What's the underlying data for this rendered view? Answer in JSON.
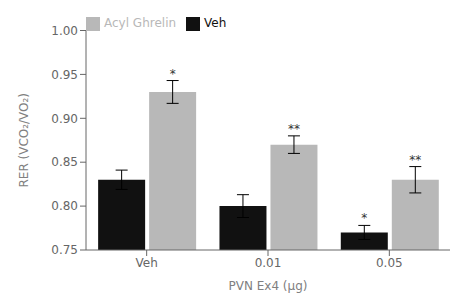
{
  "chart_data": {
    "type": "bar",
    "categories": [
      "Veh",
      "0.01",
      "0.05"
    ],
    "series": [
      {
        "name": "Veh",
        "color": "#111111",
        "values": [
          0.83,
          0.8,
          0.77
        ],
        "errors": [
          0.011,
          0.013,
          0.008
        ],
        "annotations": [
          null,
          null,
          "*"
        ]
      },
      {
        "name": "Acyl Ghrelin",
        "color": "#b8b8b8",
        "values": [
          0.93,
          0.87,
          0.83
        ],
        "errors": [
          0.013,
          0.01,
          0.015
        ],
        "annotations": [
          "*",
          "**",
          "**"
        ]
      }
    ],
    "xlabel": "PVN Ex4 (µg)",
    "ylabel": "RER (VCO₂/VO₂)",
    "ylim": [
      0.75,
      1.0
    ],
    "yticks": [
      0.75,
      {
        "value": 0.8,
        "label": "0.80"
      },
      0.85,
      {
        "value": 0.9,
        "label": "0.90"
      },
      0.95,
      {
        "value": 1.0,
        "label": "1.00"
      }
    ],
    "legend": "upper left"
  }
}
